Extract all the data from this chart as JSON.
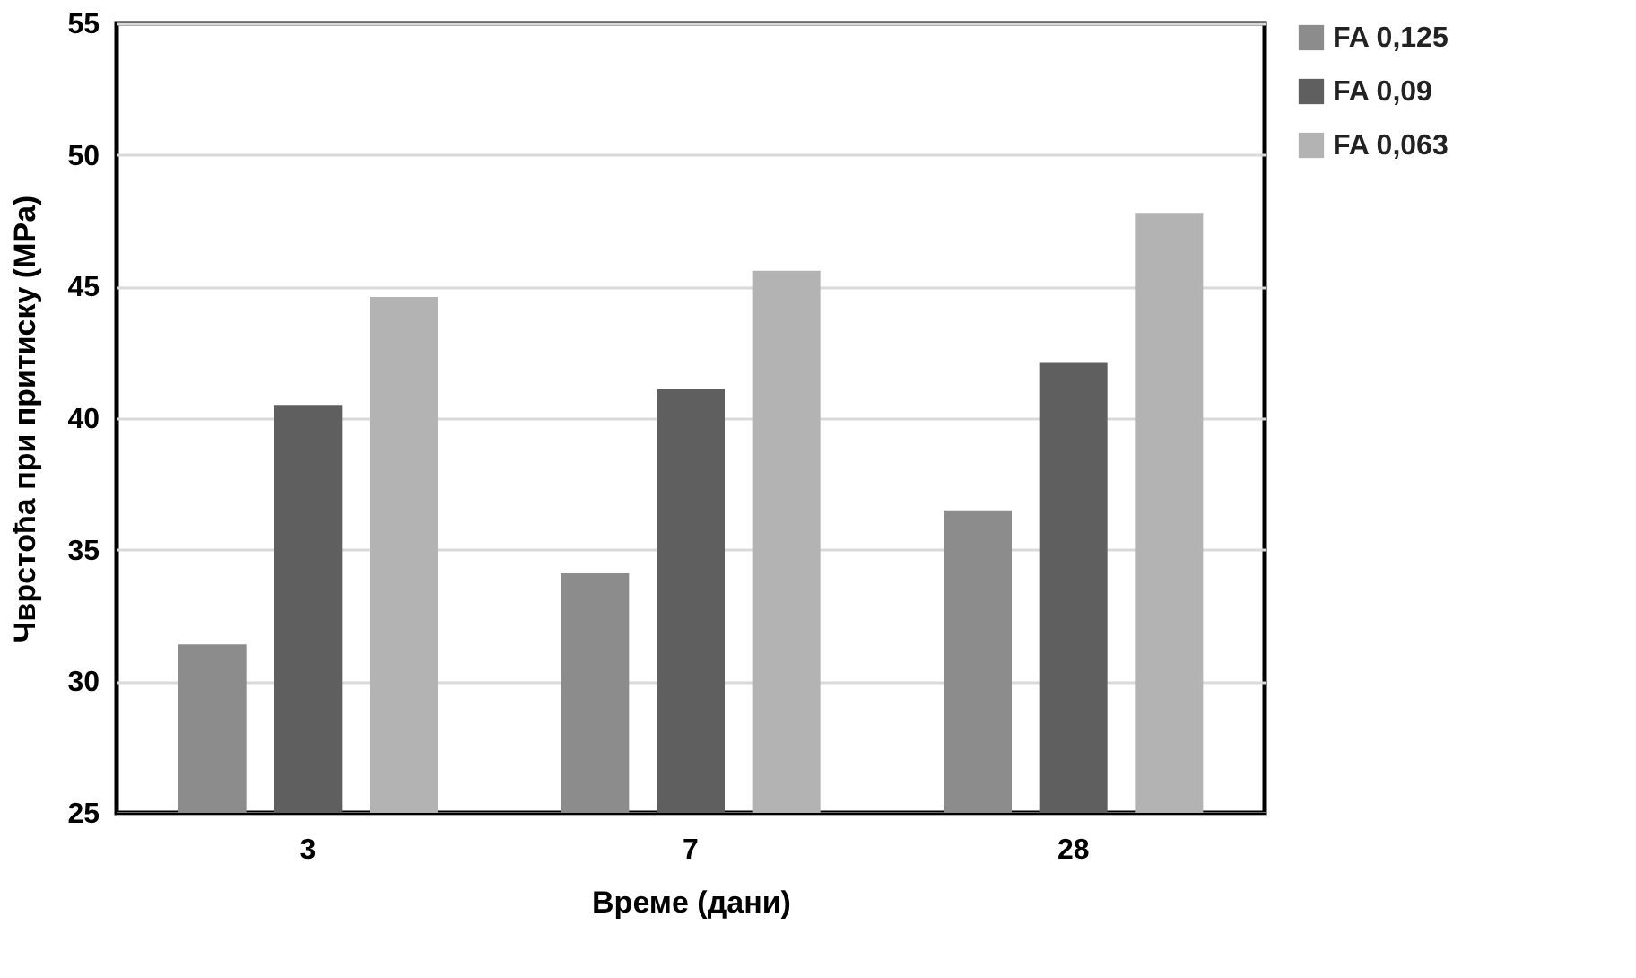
{
  "chart_data": {
    "type": "bar",
    "xlabel": "Време (дани)",
    "ylabel": "Чврстоћа при притиску (MPa)",
    "categories": [
      "3",
      "7",
      "28"
    ],
    "series": [
      {
        "name": "FA 0,125",
        "color": "#8c8c8c",
        "values": [
          31.4,
          34.1,
          36.5
        ]
      },
      {
        "name": "FA 0,09",
        "color": "#5f5f5f",
        "values": [
          40.5,
          41.1,
          42.1
        ]
      },
      {
        "name": "FA 0,063",
        "color": "#b3b3b3",
        "values": [
          44.6,
          45.6,
          47.8
        ]
      }
    ],
    "ylim": [
      25,
      55
    ],
    "yticks": [
      25,
      30,
      35,
      40,
      45,
      50,
      55
    ],
    "grid": "y",
    "legend": "right"
  }
}
